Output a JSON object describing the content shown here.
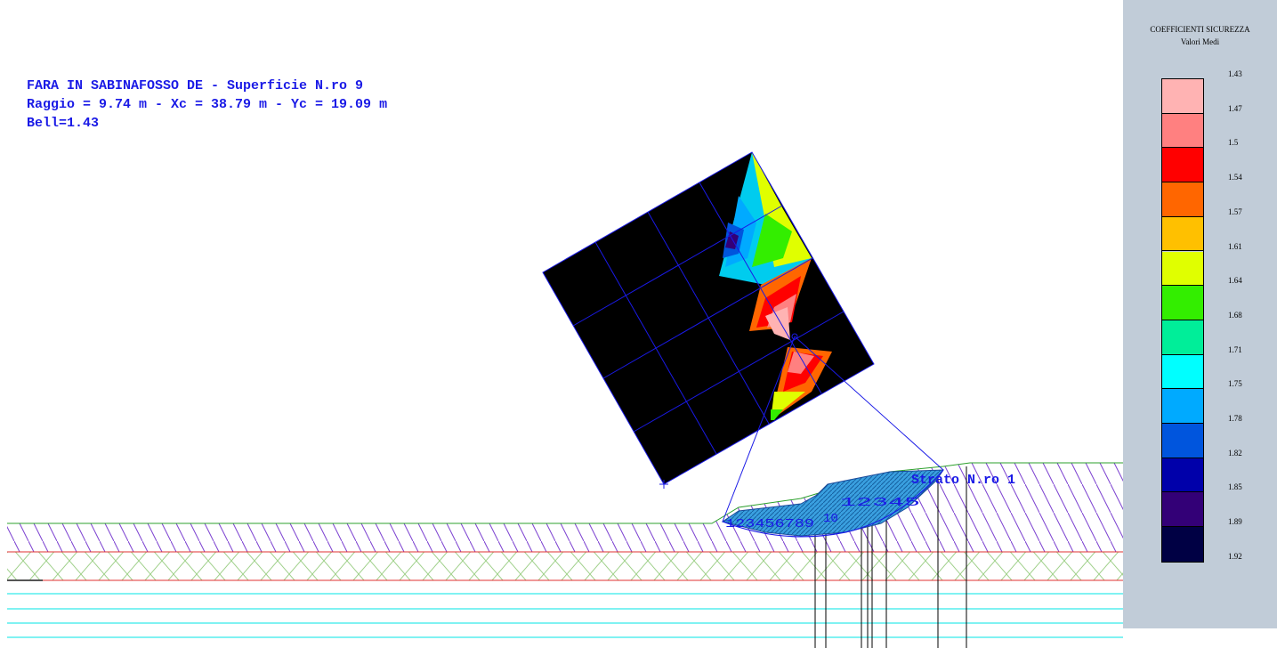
{
  "header": {
    "line1": "FARA IN SABINAFOSSO DE - Superficie N.ro 9",
    "line2": "Raggio = 9.74 m - Xc = 38.79 m - Yc = 19.09 m",
    "line3": "Bell=1.43"
  },
  "legend": {
    "title": "COEFFICIENTI SICUREZZA",
    "subtitle": "Valori Medi",
    "values": [
      "1.43",
      "1.47",
      "1.5",
      "1.54",
      "1.57",
      "1.61",
      "1.64",
      "1.68",
      "1.71",
      "1.75",
      "1.78",
      "1.82",
      "1.85",
      "1.89",
      "1.92"
    ],
    "colors": [
      "#ffb3b3",
      "#ff8080",
      "#ff0000",
      "#ff6600",
      "#ffc000",
      "#e0ff00",
      "#33ee00",
      "#00ee99",
      "#00ffff",
      "#00aaff",
      "#0055dd",
      "#0000aa",
      "#330077",
      "#000044"
    ]
  },
  "diagram": {
    "layer_label": "Strato N.ro 1",
    "slice_labels_left": "123456789",
    "slice_labels_mid": "10",
    "slice_labels_right": "12345",
    "colors": {
      "layer_hatch": "#7a3fd0",
      "ground_line": "#2ca02c",
      "boundary_red": "#e03030",
      "water_cyan": "#00e5e5",
      "slice_fill": "#3aa0e0",
      "grid_line": "#1a1ae6"
    }
  }
}
